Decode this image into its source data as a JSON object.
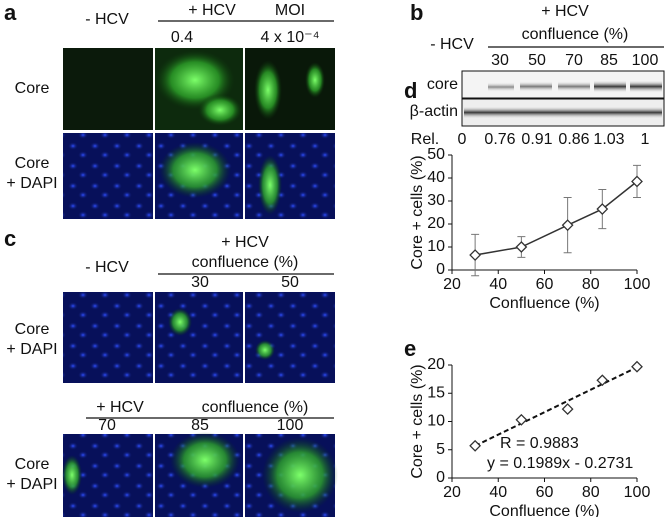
{
  "panels": {
    "a": {
      "label": "a",
      "minus": "- HCV",
      "plus": "+ HCV",
      "moi": "MOI",
      "doses": [
        "0.4",
        "4 x 10⁻⁴"
      ],
      "rows": [
        [
          "Core"
        ],
        [
          "Core",
          "+ DAPI"
        ]
      ]
    },
    "b": {
      "label": "b",
      "plus": "+ HCV",
      "minus": "- HCV",
      "confluence": "confluence (%)",
      "lanes": [
        "30",
        "50",
        "70",
        "85",
        "100"
      ],
      "rows": [
        "core",
        "β-actin"
      ],
      "rel_label": "Rel.",
      "rel": [
        0,
        0.76,
        0.91,
        0.86,
        1.03,
        1
      ]
    },
    "c": {
      "label": "c",
      "top": {
        "minus": "- HCV",
        "plus": "+ HCV",
        "confluence": "confluence (%)",
        "lanes": [
          "30",
          "50"
        ]
      },
      "bottom": {
        "plus": "+ HCV",
        "confluence": "confluence (%)",
        "lanes": [
          "70",
          "85",
          "100"
        ]
      },
      "rows": [
        [
          "Core",
          "+ DAPI"
        ],
        [
          "Core",
          "+ DAPI"
        ]
      ]
    }
  },
  "chart_data": [
    {
      "label": "d",
      "type": "line",
      "x_label": "Confluence (%)",
      "y_label": "Core + cells (%)",
      "x": [
        30,
        50,
        70,
        85,
        100
      ],
      "values": [
        6.5,
        10,
        19.5,
        26.5,
        38.5
      ],
      "errors": [
        9,
        4.5,
        12,
        8.5,
        7
      ],
      "color": "#333333",
      "marker": "diamond",
      "xlim": [
        20,
        100
      ],
      "xticks": [
        20,
        40,
        60,
        80,
        100
      ],
      "ylim": [
        0,
        50
      ],
      "yticks": [
        0,
        10,
        20,
        30,
        40,
        50
      ]
    },
    {
      "label": "e",
      "type": "scatter",
      "x_label": "Confluence (%)",
      "y_label": "Core + cells (%)",
      "x": [
        30,
        50,
        70,
        85,
        100
      ],
      "values": [
        5.7,
        10.3,
        12.2,
        17.3,
        19.7
      ],
      "color": "#333333",
      "marker": "diamond",
      "trendline": true,
      "annotations": [
        "R = 0.9883",
        "y = 0.1989x - 0.2731"
      ],
      "xlim": [
        20,
        100
      ],
      "xticks": [
        20,
        40,
        60,
        80,
        100
      ],
      "ylim": [
        0,
        20
      ],
      "yticks": [
        0,
        5,
        10,
        15,
        20
      ]
    }
  ]
}
